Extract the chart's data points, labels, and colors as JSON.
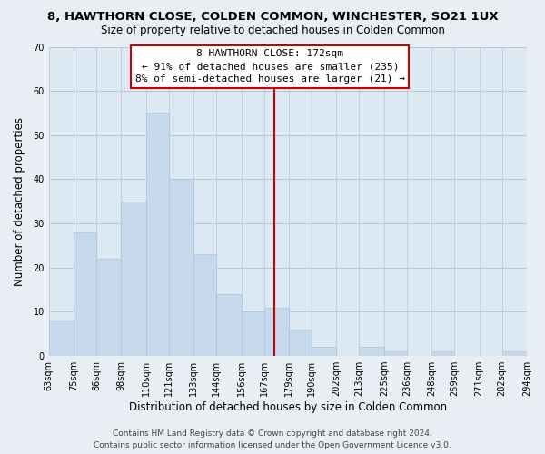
{
  "title": "8, HAWTHORN CLOSE, COLDEN COMMON, WINCHESTER, SO21 1UX",
  "subtitle": "Size of property relative to detached houses in Colden Common",
  "xlabel": "Distribution of detached houses by size in Colden Common",
  "ylabel": "Number of detached properties",
  "bin_edges": [
    63,
    75,
    86,
    98,
    110,
    121,
    133,
    144,
    156,
    167,
    179,
    190,
    202,
    213,
    225,
    236,
    248,
    259,
    271,
    282,
    294
  ],
  "bin_labels": [
    "63sqm",
    "75sqm",
    "86sqm",
    "98sqm",
    "110sqm",
    "121sqm",
    "133sqm",
    "144sqm",
    "156sqm",
    "167sqm",
    "179sqm",
    "190sqm",
    "202sqm",
    "213sqm",
    "225sqm",
    "236sqm",
    "248sqm",
    "259sqm",
    "271sqm",
    "282sqm",
    "294sqm"
  ],
  "counts": [
    8,
    28,
    22,
    35,
    55,
    40,
    23,
    14,
    10,
    11,
    6,
    2,
    0,
    2,
    1,
    0,
    1,
    0,
    0,
    1
  ],
  "bar_color": "#c6d9ec",
  "bar_edge_color": "#a8c4dc",
  "ylim": [
    0,
    70
  ],
  "yticks": [
    0,
    10,
    20,
    30,
    40,
    50,
    60,
    70
  ],
  "vline_x": 172,
  "vline_color": "#cc0000",
  "annotation_box_text_line1": "8 HAWTHORN CLOSE: 172sqm",
  "annotation_box_text_line2": "← 91% of detached houses are smaller (235)",
  "annotation_box_text_line3": "8% of semi-detached houses are larger (21) →",
  "annotation_box_edge_color": "#cc0000",
  "annotation_box_facecolor": "#ffffff",
  "footer_line1": "Contains HM Land Registry data © Crown copyright and database right 2024.",
  "footer_line2": "Contains public sector information licensed under the Open Government Licence v3.0.",
  "bg_color": "#e8eef4",
  "plot_bg_color": "#dce8f2",
  "grid_color": "#b8c8d8",
  "title_fontsize": 9.5,
  "subtitle_fontsize": 8.5,
  "xlabel_fontsize": 8.5,
  "ylabel_fontsize": 8.5,
  "tick_fontsize": 7,
  "annotation_fontsize": 8,
  "footer_fontsize": 6.5
}
